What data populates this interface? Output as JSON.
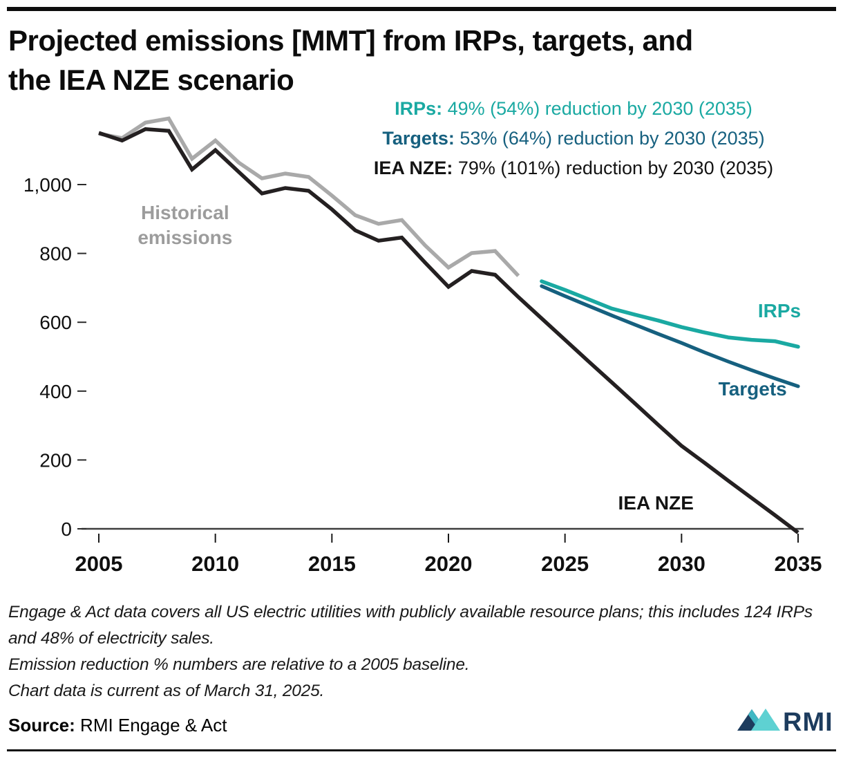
{
  "header": {
    "title_line1": "Projected emissions [MMT] from IRPs, targets, and",
    "title_line2": "the IEA NZE scenario"
  },
  "legend": [
    {
      "label": "IRPs:",
      "text": " 49% (54%) reduction by 2030 (2035)",
      "color": "#1aa9a2"
    },
    {
      "label": "Targets:",
      "text": " 53% (64%) reduction by 2030 (2035)",
      "color": "#16607f"
    },
    {
      "label": "IEA NZE:",
      "text": " 79% (101%) reduction by 2030 (2035)",
      "color": "#141414"
    }
  ],
  "chart_data": {
    "type": "line",
    "title": "Projected emissions [MMT] from IRPs, targets, and the IEA NZE scenario",
    "ylabel": "MMT",
    "xlabel": "",
    "grid": false,
    "xlim": [
      2005,
      2035
    ],
    "ylim": [
      0,
      1200
    ],
    "x_ticks": [
      2005,
      2010,
      2015,
      2020,
      2025,
      2030,
      2035
    ],
    "y_ticks": [
      0,
      200,
      400,
      600,
      800,
      1000
    ],
    "y_tick_labels": [
      "0",
      "200",
      "400",
      "600",
      "800",
      "1,000"
    ],
    "series": [
      {
        "name": "historical",
        "label": "Historical emissions",
        "color": "#a9a9a9",
        "start_year": 2005,
        "values": [
          1148,
          1135,
          1180,
          1192,
          1075,
          1128,
          1064,
          1018,
          1032,
          1022,
          968,
          911,
          886,
          897,
          823,
          759,
          801,
          807,
          735
        ]
      },
      {
        "name": "iea_nze",
        "label": "IEA NZE",
        "color": "#242021",
        "start_year": 2005,
        "values": [
          1150,
          1128,
          1161,
          1156,
          1044,
          1100,
          1037,
          974,
          990,
          982,
          928,
          867,
          837,
          846,
          773,
          703,
          749,
          738,
          673,
          611,
          549,
          487,
          426,
          364,
          302,
          241,
          191,
          140,
          90,
          40,
          -11
        ]
      },
      {
        "name": "targets",
        "label": "Targets",
        "color": "#16607f",
        "start_year": 2024,
        "values": [
          705,
          676,
          648,
          620,
          593,
          566,
          540,
          512,
          486,
          461,
          437,
          414
        ]
      },
      {
        "name": "irps",
        "label": "IRPs",
        "color": "#1aa9a2",
        "start_year": 2024,
        "values": [
          719,
          694,
          667,
          640,
          622,
          605,
          586,
          570,
          556,
          549,
          545,
          529
        ]
      }
    ],
    "annotations": [
      {
        "lines": [
          "Historical",
          "emissions"
        ],
        "year": 2008.7,
        "value": 900,
        "color": "#9c9c9c"
      },
      {
        "lines": [
          "IRPs"
        ],
        "year": 2034.2,
        "value": 614,
        "color": "#1aa9a2"
      },
      {
        "lines": [
          "Targets"
        ],
        "year": 2033.05,
        "value": 388,
        "color": "#16607f"
      },
      {
        "lines": [
          "IEA NZE"
        ],
        "year": 2028.9,
        "value": 56,
        "color": "#141414"
      }
    ]
  },
  "footnotes": [
    "Engage & Act data covers all US electric utilities with publicly available resource plans; this includes 124 IRPs and 48% of electricity sales.",
    "Emission reduction % numbers are relative to a 2005 baseline.",
    "Chart data is current as of March 31, 2025."
  ],
  "source": {
    "label": "Source:",
    "text": " RMI Engage & Act"
  },
  "logo": {
    "text": "RMI",
    "navy": "#1d3c5e",
    "teal": "#5ed1d2",
    "band": "#3fb8c4"
  }
}
